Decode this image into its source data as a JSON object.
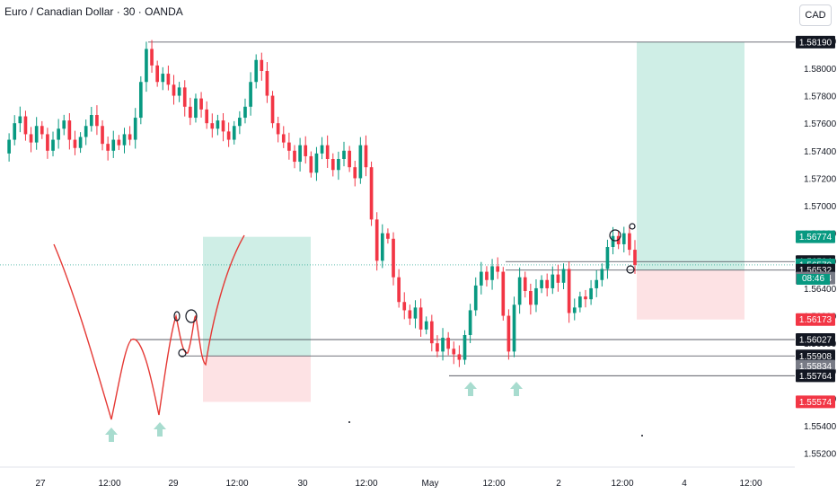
{
  "header": {
    "title": "Euro / Canadian Dollar · 30 · OANDA",
    "currency_button": "CAD",
    "countdown": "08:46"
  },
  "colors": {
    "up": "#089981",
    "down": "#f23645",
    "target_zone": "#cfeee6",
    "stop_zone": "#fde2e4",
    "level_line": "#131722",
    "drawing": "#e53935",
    "arrow": "#a8dccf"
  },
  "chart_data": {
    "type": "candlestick",
    "symbol": "EURCAD",
    "timeframe": "30",
    "x_tick_labels": [
      "27",
      "12:00",
      "29",
      "12:00",
      "30",
      "12:00",
      "May",
      "12:00",
      "2",
      "12:00",
      "4",
      "12:00"
    ],
    "y_tick_labels": [
      1.582,
      1.58,
      1.578,
      1.576,
      1.574,
      1.572,
      1.57,
      1.568,
      1.566,
      1.564,
      1.562,
      1.56,
      1.558,
      1.556,
      1.554,
      1.552
    ],
    "ylim": [
      1.551,
      1.583
    ],
    "price_tags": [
      {
        "value": "1.58190",
        "style": "black"
      },
      {
        "value": "1.56774",
        "style": "green"
      },
      {
        "value": "1.56594",
        "style": "black"
      },
      {
        "value": "1.56570",
        "style": "green"
      },
      {
        "value": "1.56532",
        "style": "black"
      },
      {
        "value": "1.56474",
        "style": "gray"
      },
      {
        "value": "1.56173",
        "style": "red"
      },
      {
        "value": "1.56027",
        "style": "black"
      },
      {
        "value": "1.55908",
        "style": "black"
      },
      {
        "value": "1.55834",
        "style": "gray"
      },
      {
        "value": "1.55764",
        "style": "black"
      },
      {
        "value": "1.55574",
        "style": "red"
      }
    ],
    "horizontal_levels": [
      1.5819,
      1.56594,
      1.56532,
      1.56027,
      1.55908,
      1.55764
    ],
    "current_price": 1.5657,
    "price_path": [
      1.5738,
      1.5748,
      1.576,
      1.5765,
      1.5752,
      1.5746,
      1.5758,
      1.5752,
      1.574,
      1.5748,
      1.5756,
      1.5762,
      1.5748,
      1.5742,
      1.575,
      1.5758,
      1.5766,
      1.5758,
      1.5745,
      1.574,
      1.5748,
      1.5744,
      1.5752,
      1.5748,
      1.5764,
      1.579,
      1.5814,
      1.5802,
      1.579,
      1.5796,
      1.5788,
      1.578,
      1.5786,
      1.5772,
      1.5764,
      1.5778,
      1.577,
      1.576,
      1.5756,
      1.5762,
      1.5754,
      1.5748,
      1.5758,
      1.5764,
      1.5772,
      1.579,
      1.5806,
      1.5798,
      1.578,
      1.576,
      1.5752,
      1.5746,
      1.574,
      1.5732,
      1.5744,
      1.5736,
      1.5724,
      1.5738,
      1.5744,
      1.5734,
      1.5726,
      1.5734,
      1.574,
      1.5728,
      1.572,
      1.5744,
      1.5728,
      1.569,
      1.566,
      1.568,
      1.5676,
      1.5648,
      1.563,
      1.5624,
      1.5618,
      1.5626,
      1.561,
      1.5616,
      1.56,
      1.5594,
      1.5604,
      1.5596,
      1.5592,
      1.5588,
      1.5606,
      1.5624,
      1.5642,
      1.5652,
      1.5646,
      1.5656,
      1.5652,
      1.562,
      1.5594,
      1.5628,
      1.5648,
      1.5638,
      1.5628,
      1.564,
      1.5646,
      1.564,
      1.565,
      1.5644,
      1.5654,
      1.5622,
      1.5626,
      1.5634,
      1.5632,
      1.564,
      1.5646,
      1.5654,
      1.567,
      1.5678,
      1.5672,
      1.568,
      1.5668,
      1.5657
    ]
  }
}
